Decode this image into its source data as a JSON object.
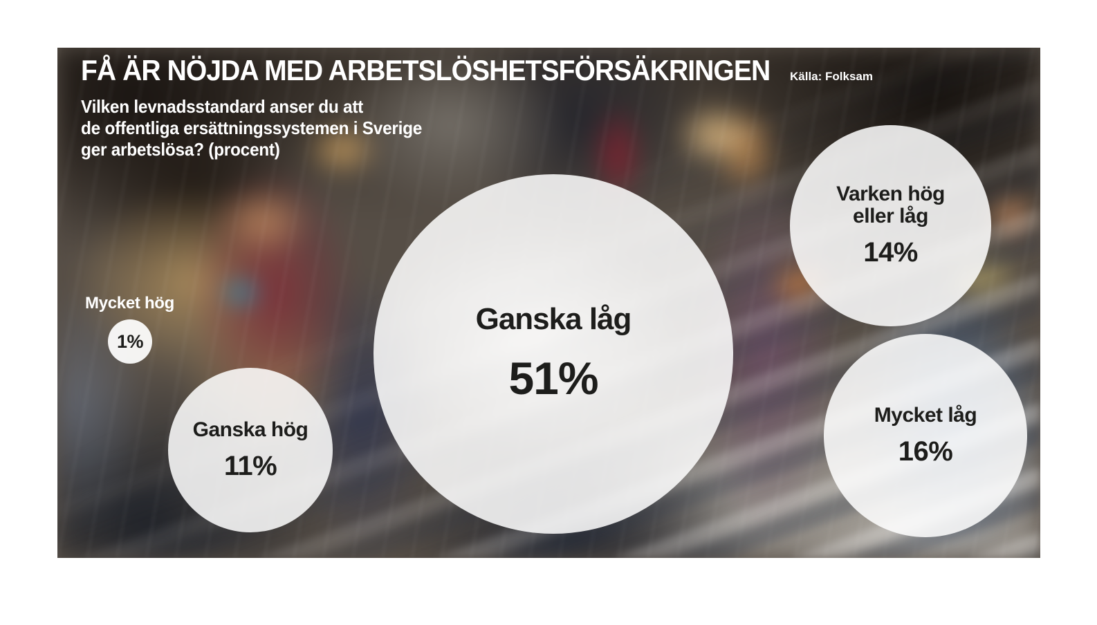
{
  "header": {
    "title": "FÅ ÄR NÖJDA MED ARBETSLÖSHETSFÖRSÄKRINGEN",
    "source": "Källa: Folksam",
    "question": {
      "line1_pre": "Vilken ",
      "line1_bold": "levnadsstandard",
      "line1_post": " anser du att",
      "line2": "de offentliga ersättningssystemen i Sverige",
      "line3": "ger arbetslösa? (procent)"
    }
  },
  "chart_data": {
    "type": "bubble",
    "title": "FÅ ÄR NÖJDA MED ARBETSLÖSHETSFÖRSÄKRINGEN",
    "question": "Vilken levnadsstandard anser du att de offentliga ersättningssystemen i Sverige ger arbetslösa? (procent)",
    "source": "Källa: Folksam",
    "unit": "procent",
    "categories": [
      "Mycket hög",
      "Ganska hög",
      "Ganska låg",
      "Varken hög eller låg",
      "Mycket låg"
    ],
    "values": [
      1,
      11,
      51,
      14,
      16
    ],
    "legend_position": "none",
    "grid": false
  },
  "bubbles": [
    {
      "label": "Mycket hög",
      "value": "1%"
    },
    {
      "label": "Ganska hög",
      "value": "11%"
    },
    {
      "label": "Ganska låg",
      "value": "51%"
    },
    {
      "label_line1": "Varken hög",
      "label_line2": "eller låg",
      "value": "14%"
    },
    {
      "label": "Mycket låg",
      "value": "16%"
    }
  ],
  "colors": {
    "bubble_fill": "#ffffff",
    "bubble_fill_opacity": "0.86",
    "text_dark": "#1d1d1b",
    "text_light": "#ffffff",
    "page_background": "#ffffff"
  }
}
